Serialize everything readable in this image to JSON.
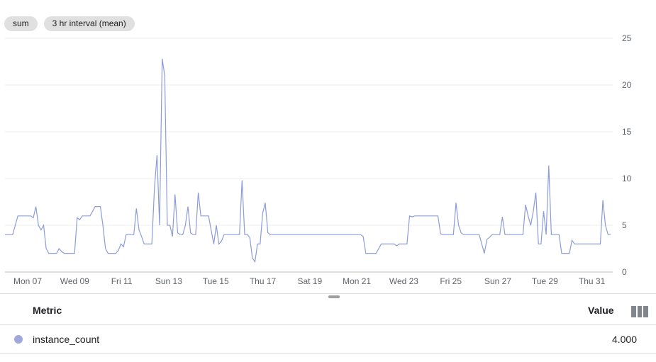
{
  "controls": {
    "aggregation_label": "sum",
    "interval_label": "3 hr interval (mean)"
  },
  "chart_data": {
    "type": "line",
    "ylim": [
      0,
      25
    ],
    "yticks": [
      0,
      5,
      10,
      15,
      20,
      25
    ],
    "xtick_labels": [
      "Mon 07",
      "Wed 09",
      "Fri 11",
      "Sun 13",
      "Tue 15",
      "Thu 17",
      "Sat 19",
      "Mon 21",
      "Wed 23",
      "Fri 25",
      "Sun 27",
      "Tue 29",
      "Thu 31"
    ],
    "grid": true,
    "line_color": "#8c9cd8",
    "series": [
      {
        "values": [
          4,
          4,
          4,
          4,
          5,
          6,
          6,
          6,
          6,
          6,
          6,
          5.8,
          7,
          5,
          4.5,
          5,
          2.5,
          2,
          2,
          2,
          2,
          2.5,
          2.2,
          2,
          2,
          2,
          2,
          2,
          5.8,
          5.6,
          6,
          6,
          6,
          6,
          6.5,
          7,
          7,
          7,
          5,
          2.5,
          2,
          2,
          2,
          2,
          2.3,
          3,
          2.7,
          4,
          4,
          4,
          4,
          6.8,
          4.5,
          3.8,
          3,
          3,
          3,
          3,
          9,
          12.5,
          5,
          22.8,
          21,
          5,
          5,
          3.8,
          8.3,
          4.2,
          4,
          4,
          5,
          7,
          4.2,
          4,
          4,
          8.5,
          6,
          6,
          6,
          6,
          4.5,
          3,
          5,
          3,
          3.3,
          4,
          4,
          4,
          4,
          4,
          4,
          4,
          9.8,
          4,
          4,
          3.7,
          1.5,
          1.1,
          3,
          3,
          6.3,
          7.4,
          4.2,
          4,
          4,
          4,
          4,
          4,
          4,
          4,
          4,
          4,
          4,
          4,
          4,
          4,
          4,
          4,
          4,
          4,
          4,
          4,
          4,
          4,
          4,
          4,
          4,
          4,
          4,
          4,
          4,
          4,
          4,
          4,
          4,
          4,
          4,
          4,
          4,
          3.8,
          2,
          2,
          2,
          2,
          2,
          2.5,
          3,
          3,
          3,
          3,
          3,
          3,
          2.8,
          3,
          3,
          3,
          3,
          6,
          5.9,
          6,
          6,
          6,
          6,
          6,
          6,
          6,
          6,
          6,
          6,
          4.1,
          4,
          4,
          4,
          4,
          4,
          7.4,
          5,
          4.2,
          4,
          4,
          4,
          4,
          4,
          4,
          4,
          3,
          2,
          3.5,
          3.7,
          4,
          4,
          4,
          4,
          5.9,
          4,
          4,
          4,
          4,
          4,
          4,
          4,
          4,
          7.2,
          6,
          5,
          6.5,
          8.5,
          3,
          3,
          6.5,
          4,
          11.4,
          4,
          4,
          4,
          4,
          2,
          2,
          2,
          2,
          3.4,
          3,
          3,
          3,
          3,
          3,
          3,
          3,
          3,
          3,
          3,
          3,
          7.7,
          5,
          4,
          4
        ]
      }
    ]
  },
  "table": {
    "col_metric": "Metric",
    "col_value": "Value",
    "rows": [
      {
        "metric": "instance_count",
        "value": "4.000",
        "color": "#9fa8da"
      }
    ]
  }
}
